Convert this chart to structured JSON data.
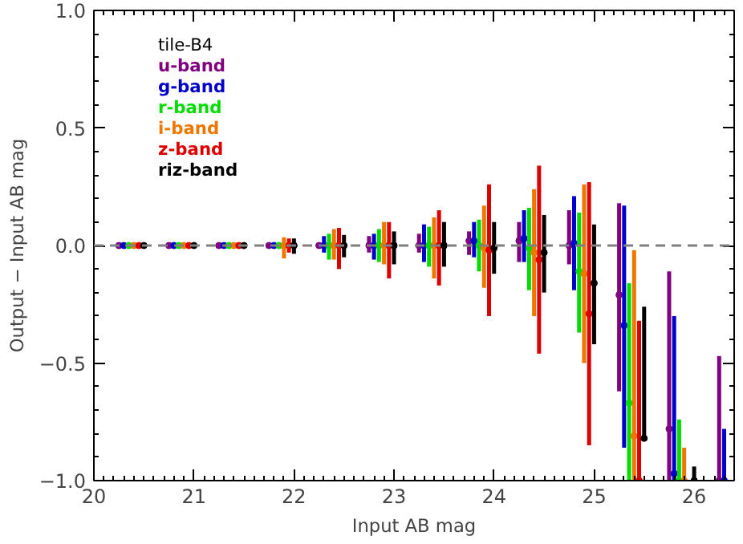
{
  "chart_data": {
    "type": "scatter",
    "xlabel": "Input AB mag",
    "ylabel": "Output − Input AB mag",
    "legend_title": "tile-B4",
    "legend": "top left",
    "grid": false,
    "marker": "circle",
    "xlim": [
      20,
      26.4
    ],
    "ylim": [
      -1,
      1
    ],
    "xticks": [
      20,
      21,
      22,
      23,
      24,
      25,
      26
    ],
    "yticks": [
      {
        "value": -1,
        "label": "−1.0"
      },
      {
        "value": -0.5,
        "label": "−0.5"
      },
      {
        "value": 0,
        "label": "0.0"
      },
      {
        "value": 0.5,
        "label": "0.5"
      },
      {
        "value": 1,
        "label": "1.0"
      }
    ],
    "ref_lines": [
      {
        "axis": "y",
        "value": 0,
        "color": "#808080",
        "line_style": "dashed"
      }
    ],
    "series": [
      {
        "name": "u-band",
        "color": "#800080",
        "x": [
          20.25,
          20.75,
          21.25,
          21.75,
          22.25,
          22.75,
          23.25,
          23.75,
          24.25,
          24.75,
          25.25,
          25.75,
          26.25
        ],
        "values": [
          0,
          0,
          0,
          0,
          0,
          0,
          0,
          0.02,
          0.02,
          0,
          -0.21,
          -0.78,
          -1
        ],
        "errors": [
          null,
          null,
          null,
          null,
          null,
          [
            -0.03,
            0.04
          ],
          [
            -0.03,
            0.05
          ],
          [
            -0.04,
            0.06
          ],
          [
            -0.07,
            0.1
          ],
          [
            -0.08,
            0.15
          ],
          [
            -0.62,
            0.18
          ],
          [
            -1,
            -0.11
          ],
          [
            -1,
            -0.47
          ]
        ]
      },
      {
        "name": "g-band",
        "color": "#0000cc",
        "x": [
          20.3,
          20.8,
          21.3,
          21.8,
          22.3,
          22.8,
          23.3,
          23.8,
          24.3,
          24.8,
          25.3,
          25.8,
          26.3
        ],
        "values": [
          0,
          0,
          0,
          0,
          0,
          0,
          0,
          0.02,
          0.03,
          0.01,
          -0.34,
          -0.97,
          -1
        ],
        "errors": [
          null,
          null,
          null,
          null,
          [
            -0.03,
            0.04
          ],
          [
            -0.06,
            0.05
          ],
          [
            -0.07,
            0.09
          ],
          [
            -0.05,
            0.1
          ],
          [
            -0.07,
            0.15
          ],
          [
            -0.19,
            0.21
          ],
          [
            -0.86,
            0.17
          ],
          [
            -1,
            -0.3
          ],
          [
            -1,
            -0.78
          ]
        ]
      },
      {
        "name": "r-band",
        "color": "#00dd00",
        "x": [
          20.35,
          20.85,
          21.35,
          21.85,
          22.35,
          22.85,
          23.35,
          23.85,
          24.35,
          24.85,
          25.35,
          25.85,
          null
        ],
        "values": [
          0,
          0,
          0,
          0,
          0,
          0,
          0,
          0,
          -0.01,
          -0.11,
          -0.67,
          -1,
          null
        ],
        "errors": [
          null,
          null,
          null,
          null,
          [
            -0.06,
            0.05
          ],
          [
            -0.07,
            0.07
          ],
          [
            -0.09,
            0.08
          ],
          [
            -0.11,
            0.11
          ],
          [
            -0.19,
            0.16
          ],
          [
            -0.37,
            0.14
          ],
          [
            -1,
            -0.16
          ],
          [
            -1,
            -0.74
          ],
          null
        ]
      },
      {
        "name": "i-band",
        "color": "#ee7700",
        "x": [
          20.4,
          20.9,
          21.4,
          21.9,
          22.4,
          22.9,
          23.4,
          23.9,
          24.4,
          24.9,
          25.4,
          25.9,
          null
        ],
        "values": [
          0,
          0,
          0,
          0,
          0,
          0,
          0,
          -0.01,
          -0.03,
          -0.12,
          -0.81,
          -1,
          null
        ],
        "errors": [
          null,
          null,
          null,
          [
            -0.055,
            0.035
          ],
          [
            -0.06,
            0.07
          ],
          [
            -0.08,
            0.1
          ],
          [
            -0.14,
            0.12
          ],
          [
            -0.18,
            0.17
          ],
          [
            -0.3,
            0.24
          ],
          [
            -0.5,
            0.26
          ],
          [
            -1,
            -0.02
          ],
          [
            -1,
            -0.86
          ],
          null
        ]
      },
      {
        "name": "z-band",
        "color": "#dd0000",
        "x": [
          20.45,
          20.95,
          21.45,
          21.95,
          22.45,
          22.95,
          23.45,
          23.95,
          24.45,
          24.95,
          25.45,
          null,
          null
        ],
        "values": [
          0,
          0,
          0,
          0,
          0,
          0,
          0,
          -0.02,
          -0.06,
          -0.29,
          -1,
          null,
          null
        ],
        "errors": [
          null,
          null,
          null,
          [
            -0.03,
            0.03
          ],
          [
            -0.1,
            0.075
          ],
          [
            -0.14,
            0.1
          ],
          [
            -0.17,
            0.15
          ],
          [
            -0.3,
            0.26
          ],
          [
            -0.46,
            0.34
          ],
          [
            -0.85,
            0.27
          ],
          [
            -1,
            -0.32
          ],
          null,
          null
        ]
      },
      {
        "name": "riz-band",
        "color": "#000000",
        "x": [
          20.5,
          21.0,
          21.5,
          22.0,
          22.5,
          23.0,
          23.5,
          24.0,
          24.5,
          25.0,
          25.5,
          26.0,
          null
        ],
        "values": [
          0,
          0,
          0,
          0,
          0,
          0,
          0,
          -0.01,
          -0.03,
          -0.16,
          -0.82,
          -1,
          null
        ],
        "errors": [
          null,
          null,
          null,
          [
            -0.035,
            0.03
          ],
          [
            -0.05,
            0.045
          ],
          [
            -0.08,
            0.06
          ],
          [
            -0.09,
            0.1
          ],
          [
            -0.12,
            0.1
          ],
          [
            -0.2,
            0.13
          ],
          [
            -0.42,
            0.09
          ],
          [
            -0.83,
            -0.26
          ],
          [
            -1,
            -0.94
          ],
          null
        ]
      }
    ]
  }
}
